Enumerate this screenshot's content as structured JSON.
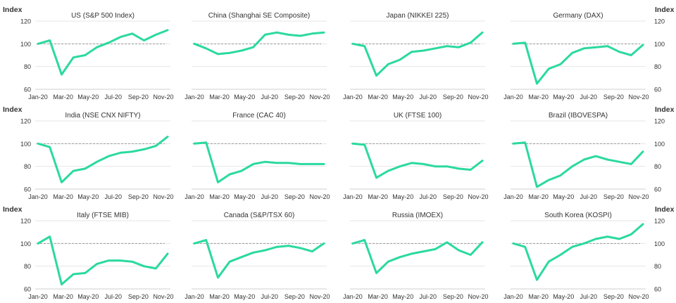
{
  "axis_label": "Index",
  "colors": {
    "line": "#2bd9a0",
    "baseline": "#9a9a9a",
    "grid": "#e6e6e6"
  },
  "chart_data": [
    {
      "type": "line",
      "title": "US (S&P 500 Index)",
      "ylim": [
        60,
        120
      ],
      "yticks": [
        60,
        80,
        100,
        120
      ],
      "xticks": [
        "Jan-20",
        "Mar-20",
        "May-20",
        "Jul-20",
        "Sep-20",
        "Nov-20"
      ],
      "baseline": 100,
      "x": [
        "Jan-20",
        "Feb-20",
        "Mar-20",
        "Apr-20",
        "May-20",
        "Jun-20",
        "Jul-20",
        "Aug-20",
        "Sep-20",
        "Oct-20",
        "Nov-20",
        "Dec-20"
      ],
      "values": [
        100,
        103,
        73,
        88,
        90,
        97,
        101,
        106,
        109,
        103,
        108,
        112
      ]
    },
    {
      "type": "line",
      "title": "China (Shanghai SE Composite)",
      "ylim": [
        60,
        120
      ],
      "yticks": [
        60,
        80,
        100,
        120
      ],
      "xticks": [
        "Jan-20",
        "Mar-20",
        "May-20",
        "Jul-20",
        "Sep-20",
        "Nov-20"
      ],
      "baseline": 100,
      "x": [
        "Jan-20",
        "Feb-20",
        "Mar-20",
        "Apr-20",
        "May-20",
        "Jun-20",
        "Jul-20",
        "Aug-20",
        "Sep-20",
        "Oct-20",
        "Nov-20",
        "Dec-20"
      ],
      "values": [
        100,
        96,
        91,
        92,
        94,
        97,
        108,
        110,
        108,
        107,
        109,
        110
      ]
    },
    {
      "type": "line",
      "title": "Japan (NIKKEI 225)",
      "ylim": [
        60,
        120
      ],
      "yticks": [
        60,
        80,
        100,
        120
      ],
      "xticks": [
        "Jan-20",
        "Mar-20",
        "May-20",
        "Jul-20",
        "Sep-20",
        "Nov-20"
      ],
      "baseline": 100,
      "x": [
        "Jan-20",
        "Feb-20",
        "Mar-20",
        "Apr-20",
        "May-20",
        "Jun-20",
        "Jul-20",
        "Aug-20",
        "Sep-20",
        "Oct-20",
        "Nov-20",
        "Dec-20"
      ],
      "values": [
        100,
        98,
        72,
        82,
        86,
        93,
        94,
        96,
        98,
        97,
        101,
        110
      ]
    },
    {
      "type": "line",
      "title": "Germany (DAX)",
      "ylim": [
        60,
        120
      ],
      "yticks": [
        60,
        80,
        100,
        120
      ],
      "xticks": [
        "Jan-20",
        "Mar-20",
        "May-20",
        "Jul-20",
        "Sep-20",
        "Nov-20"
      ],
      "baseline": 100,
      "x": [
        "Jan-20",
        "Feb-20",
        "Mar-20",
        "Apr-20",
        "May-20",
        "Jun-20",
        "Jul-20",
        "Aug-20",
        "Sep-20",
        "Oct-20",
        "Nov-20",
        "Dec-20"
      ],
      "values": [
        100,
        101,
        65,
        78,
        82,
        92,
        96,
        97,
        98,
        93,
        90,
        99
      ]
    },
    {
      "type": "line",
      "title": "India (NSE CNX NIFTY)",
      "ylim": [
        60,
        120
      ],
      "yticks": [
        60,
        80,
        100,
        120
      ],
      "xticks": [
        "Jan-20",
        "Mar-20",
        "May-20",
        "Jul-20",
        "Sep-20",
        "Nov-20"
      ],
      "baseline": 100,
      "x": [
        "Jan-20",
        "Feb-20",
        "Mar-20",
        "Apr-20",
        "May-20",
        "Jun-20",
        "Jul-20",
        "Aug-20",
        "Sep-20",
        "Oct-20",
        "Nov-20",
        "Dec-20"
      ],
      "values": [
        100,
        97,
        66,
        76,
        78,
        84,
        89,
        92,
        93,
        95,
        98,
        106
      ]
    },
    {
      "type": "line",
      "title": "France (CAC 40)",
      "ylim": [
        60,
        120
      ],
      "yticks": [
        60,
        80,
        100,
        120
      ],
      "xticks": [
        "Jan-20",
        "Mar-20",
        "May-20",
        "Jul-20",
        "Sep-20",
        "Nov-20"
      ],
      "baseline": 100,
      "x": [
        "Jan-20",
        "Feb-20",
        "Mar-20",
        "Apr-20",
        "May-20",
        "Jun-20",
        "Jul-20",
        "Aug-20",
        "Sep-20",
        "Oct-20",
        "Nov-20",
        "Dec-20"
      ],
      "values": [
        100,
        101,
        66,
        73,
        76,
        82,
        84,
        83,
        83,
        82,
        82,
        82
      ]
    },
    {
      "type": "line",
      "title": "UK (FTSE 100)",
      "ylim": [
        60,
        120
      ],
      "yticks": [
        60,
        80,
        100,
        120
      ],
      "xticks": [
        "Jan-20",
        "Mar-20",
        "May-20",
        "Jul-20",
        "Sep-20",
        "Nov-20"
      ],
      "baseline": 100,
      "x": [
        "Jan-20",
        "Feb-20",
        "Mar-20",
        "Apr-20",
        "May-20",
        "Jun-20",
        "Jul-20",
        "Aug-20",
        "Sep-20",
        "Oct-20",
        "Nov-20",
        "Dec-20"
      ],
      "values": [
        100,
        99,
        70,
        76,
        80,
        83,
        82,
        80,
        80,
        78,
        77,
        85
      ]
    },
    {
      "type": "line",
      "title": "Brazil (IBOVESPA)",
      "ylim": [
        60,
        120
      ],
      "yticks": [
        60,
        80,
        100,
        120
      ],
      "xticks": [
        "Jan-20",
        "Mar-20",
        "May-20",
        "Jul-20",
        "Sep-20",
        "Nov-20"
      ],
      "baseline": 100,
      "x": [
        "Jan-20",
        "Feb-20",
        "Mar-20",
        "Apr-20",
        "May-20",
        "Jun-20",
        "Jul-20",
        "Aug-20",
        "Sep-20",
        "Oct-20",
        "Nov-20",
        "Dec-20"
      ],
      "values": [
        100,
        101,
        62,
        68,
        72,
        80,
        86,
        89,
        86,
        84,
        82,
        93
      ]
    },
    {
      "type": "line",
      "title": "Italy (FTSE MIB)",
      "ylim": [
        60,
        120
      ],
      "yticks": [
        60,
        80,
        100,
        120
      ],
      "xticks": [
        "Jan-20",
        "Mar-20",
        "May-20",
        "Jul-20",
        "Sep-20",
        "Nov-20"
      ],
      "baseline": 100,
      "x": [
        "Jan-20",
        "Feb-20",
        "Mar-20",
        "Apr-20",
        "May-20",
        "Jun-20",
        "Jul-20",
        "Aug-20",
        "Sep-20",
        "Oct-20",
        "Nov-20",
        "Dec-20"
      ],
      "values": [
        100,
        106,
        64,
        73,
        74,
        82,
        85,
        85,
        84,
        80,
        78,
        91
      ]
    },
    {
      "type": "line",
      "title": "Canada (S&P/TSX 60)",
      "ylim": [
        60,
        120
      ],
      "yticks": [
        60,
        80,
        100,
        120
      ],
      "xticks": [
        "Jan-20",
        "Mar-20",
        "May-20",
        "Jul-20",
        "Sep-20",
        "Nov-20"
      ],
      "baseline": 100,
      "x": [
        "Jan-20",
        "Feb-20",
        "Mar-20",
        "Apr-20",
        "May-20",
        "Jun-20",
        "Jul-20",
        "Aug-20",
        "Sep-20",
        "Oct-20",
        "Nov-20",
        "Dec-20"
      ],
      "values": [
        100,
        103,
        70,
        84,
        88,
        92,
        94,
        97,
        98,
        96,
        93,
        100
      ]
    },
    {
      "type": "line",
      "title": "Russia (IMOEX)",
      "ylim": [
        60,
        120
      ],
      "yticks": [
        60,
        80,
        100,
        120
      ],
      "xticks": [
        "Jan-20",
        "Mar-20",
        "May-20",
        "Jul-20",
        "Sep-20",
        "Nov-20"
      ],
      "baseline": 100,
      "x": [
        "Jan-20",
        "Feb-20",
        "Mar-20",
        "Apr-20",
        "May-20",
        "Jun-20",
        "Jul-20",
        "Aug-20",
        "Sep-20",
        "Oct-20",
        "Nov-20",
        "Dec-20"
      ],
      "values": [
        100,
        103,
        74,
        84,
        88,
        91,
        93,
        95,
        101,
        94,
        90,
        101
      ]
    },
    {
      "type": "line",
      "title": "South Korea (KOSPI)",
      "ylim": [
        60,
        120
      ],
      "yticks": [
        60,
        80,
        100,
        120
      ],
      "xticks": [
        "Jan-20",
        "Mar-20",
        "May-20",
        "Jul-20",
        "Sep-20",
        "Nov-20"
      ],
      "baseline": 100,
      "x": [
        "Jan-20",
        "Feb-20",
        "Mar-20",
        "Apr-20",
        "May-20",
        "Jun-20",
        "Jul-20",
        "Aug-20",
        "Sep-20",
        "Oct-20",
        "Nov-20",
        "Dec-20"
      ],
      "values": [
        100,
        97,
        68,
        84,
        90,
        97,
        100,
        104,
        106,
        104,
        108,
        117
      ]
    }
  ]
}
